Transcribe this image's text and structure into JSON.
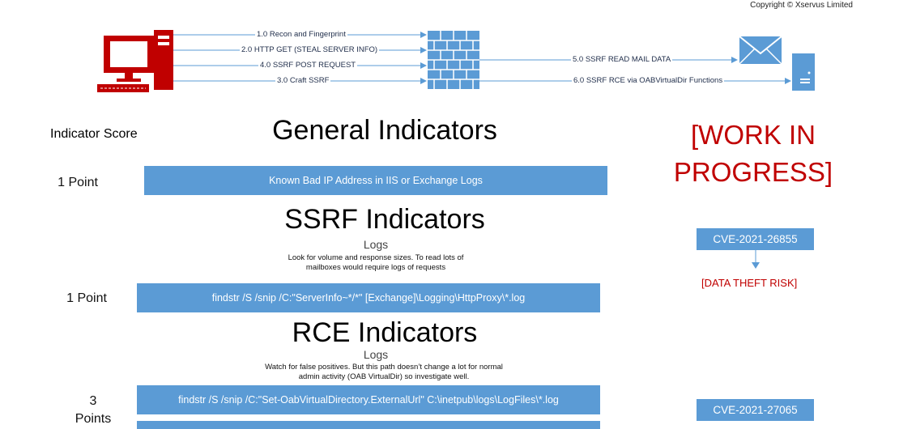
{
  "copyright": "Copyright © Xservus Limited",
  "flow": {
    "attacker_to_firewall": [
      "1.0 Recon and Fingerprint",
      "2.0 HTTP GET (STEAL SERVER INFO)",
      "4.0 SSRF POST REQUEST",
      "3.0 Craft SSRF"
    ],
    "firewall_to_server": [
      "5.0 SSRF READ MAIL DATA",
      "6.0 SSRF RCE via OABVirtualDir Functions"
    ]
  },
  "indicator_score_heading": "Indicator Score",
  "general": {
    "title": "General Indicators",
    "score": "1 Point",
    "bar": "Known Bad IP Address in IIS or Exchange Logs"
  },
  "ssrf": {
    "title": "SSRF Indicators",
    "logs": "Logs",
    "note_line1": "Look for volume and response sizes. To read lots of",
    "note_line2": "mailboxes would require logs of requests",
    "score": "1 Point",
    "bar": "findstr /S /snip /C:\"ServerInfo~*/*\" [Exchange]\\Logging\\HttpProxy\\*.log"
  },
  "rce": {
    "title": "RCE Indicators",
    "logs": "Logs",
    "note_line1": "Watch for false positives. But this path doesn’t change a lot for normal",
    "note_line2": "admin activity (OAB VirtualDir) so investigate well.",
    "score_line1": "3",
    "score_line2": "Points",
    "bar": "findstr /S /snip /C:\"Set-OabVirtualDirectory.ExternalUrl\" C:\\inetpub\\logs\\LogFiles\\*.log"
  },
  "wip": {
    "line1": "[WORK IN",
    "line2": "PROGRESS]"
  },
  "cve1": "CVE-2021-26855",
  "data_theft": "[DATA THEFT RISK]",
  "cve2": "CVE-2021-27065",
  "colors": {
    "bar_blue": "#5b9bd5",
    "alert_red": "#c00000",
    "computer_red": "#c00000",
    "arrow_blue": "#5b9bd5"
  }
}
